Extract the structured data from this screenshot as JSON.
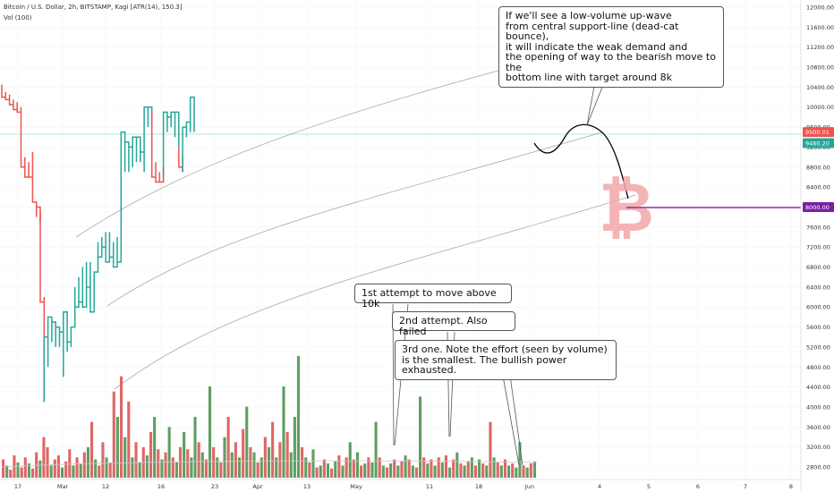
{
  "header": {
    "title": "Bitcoin / U.S. Dollar, 2h, BITSTAMP, Kagi [ATR(14), 150.3]",
    "volume": "Vol (100)"
  },
  "annotations": {
    "main": [
      "If we'll see a low-volume up-wave",
      "from central support-line (dead-cat bounce),",
      "it will indicate the weak demand and",
      "the opening of way to the bearish move to the",
      "bottom line with target around 8k"
    ],
    "first": "1st attempt to move above 10k",
    "second": "2nd attempt. Also failed",
    "third": [
      "3rd one. Note the effort (seen by volume)",
      "is the smallest. The bullish power exhausted."
    ]
  },
  "price_labels": {
    "current": "9500.01",
    "lower": "9460.20",
    "target": "8000.00"
  },
  "colors": {
    "up": "#26a69a",
    "down": "#ef5350",
    "vol_up": "#5e9f62",
    "vol_down": "#e06666",
    "target_line": "#9c27b0",
    "channel": "#aaaaaa",
    "watermark": "#f4a8a8"
  },
  "icons": {
    "watermark": "bitcoin-icon"
  },
  "chart_data": {
    "type": "line",
    "subtype": "kagi",
    "y_axis": {
      "ticks": [
        2800,
        3200,
        3600,
        4000,
        4400,
        4800,
        5200,
        5600,
        6000,
        6400,
        6800,
        7200,
        7600,
        8000,
        8400,
        8800,
        9200,
        9600,
        10000,
        10400,
        10800,
        11200,
        11600,
        12000
      ],
      "tick_labels": [
        "2800.00",
        "3200.00",
        "3600.00",
        "4000.00",
        "4400.00",
        "4800.00",
        "5200.00",
        "5600.00",
        "6000.00",
        "6400.00",
        "6800.00",
        "7200.00",
        "7600.00",
        "8000.00",
        "8400.00",
        "8800.00",
        "9200.00",
        "9600.00",
        "10000.00",
        "10400.00",
        "10800.00",
        "11200.00",
        "11600.00",
        "12000.00"
      ],
      "range": [
        2600,
        12200
      ],
      "side": "right"
    },
    "x_axis": {
      "tick_labels": [
        "17",
        "Mar",
        "12",
        "16",
        "23",
        "Apr",
        "13",
        "May",
        "11",
        "18",
        "Jun",
        "4",
        "5",
        "6",
        "7",
        "8"
      ]
    },
    "kagi": [
      {
        "dir": "down",
        "lines": [
          10450,
          10200,
          10300,
          10150,
          10250,
          10050,
          10150,
          9950,
          10100,
          9900,
          10000,
          9700
        ]
      },
      {
        "dir": "down",
        "lines": [
          9700,
          8800,
          9000,
          8600,
          8900,
          8600,
          9100,
          8100,
          7800,
          8000,
          7700,
          7900
        ]
      },
      {
        "dir": "down",
        "lines": [
          7900,
          6100,
          6200,
          4100
        ]
      },
      {
        "dir": "up",
        "lines": [
          4100,
          5400,
          4800,
          5800,
          5300,
          5700,
          5200,
          5600,
          5200,
          5500,
          4600,
          5900,
          5100,
          5300,
          5200,
          5600,
          6400,
          6000,
          6600,
          6100,
          6800,
          6000,
          6900,
          6400,
          6900,
          5900,
          6500,
          6700,
          7300,
          7000,
          7400,
          7200,
          7500,
          6900,
          7500,
          7000,
          7300,
          6800,
          7400,
          6900,
          8700,
          7900
        ]
      },
      {
        "dir": "up",
        "lines": [
          7900,
          9500,
          8700,
          9300,
          8700,
          9200,
          8800,
          9400,
          8900,
          9400,
          8900,
          9100,
          8700,
          10000,
          9600,
          10000,
          9700,
          9900
        ]
      },
      {
        "dir": "down",
        "lines": [
          9900,
          8600,
          8900,
          8500,
          8700,
          8500,
          8800,
          8600
        ]
      },
      {
        "dir": "up",
        "lines": [
          8600,
          9900,
          9500,
          9800,
          9600,
          9900,
          9400,
          9900,
          9200
        ]
      },
      {
        "dir": "down",
        "lines": [
          9200,
          8800,
          9000,
          8700
        ]
      },
      {
        "dir": "up",
        "lines": [
          8700,
          9600,
          9400,
          9700,
          9500,
          10200,
          9500
        ]
      }
    ],
    "volume": [
      {
        "v": 18,
        "c": "d"
      },
      {
        "v": 12,
        "c": "u"
      },
      {
        "v": 8,
        "c": "d"
      },
      {
        "v": 22,
        "c": "d"
      },
      {
        "v": 15,
        "c": "u"
      },
      {
        "v": 10,
        "c": "d"
      },
      {
        "v": 20,
        "c": "d"
      },
      {
        "v": 14,
        "c": "u"
      },
      {
        "v": 9,
        "c": "d"
      },
      {
        "v": 25,
        "c": "d"
      },
      {
        "v": 17,
        "c": "u"
      },
      {
        "v": 40,
        "c": "d"
      },
      {
        "v": 30,
        "c": "d"
      },
      {
        "v": 12,
        "c": "u"
      },
      {
        "v": 18,
        "c": "d"
      },
      {
        "v": 22,
        "c": "d"
      },
      {
        "v": 10,
        "c": "u"
      },
      {
        "v": 16,
        "c": "d"
      },
      {
        "v": 28,
        "c": "d"
      },
      {
        "v": 12,
        "c": "u"
      },
      {
        "v": 20,
        "c": "d"
      },
      {
        "v": 14,
        "c": "u"
      },
      {
        "v": 25,
        "c": "d"
      },
      {
        "v": 30,
        "c": "u"
      },
      {
        "v": 55,
        "c": "d"
      },
      {
        "v": 18,
        "c": "u"
      },
      {
        "v": 12,
        "c": "d"
      },
      {
        "v": 35,
        "c": "d"
      },
      {
        "v": 20,
        "c": "u"
      },
      {
        "v": 15,
        "c": "d"
      },
      {
        "v": 85,
        "c": "d"
      },
      {
        "v": 60,
        "c": "u"
      },
      {
        "v": 100,
        "c": "d"
      },
      {
        "v": 40,
        "c": "u"
      },
      {
        "v": 75,
        "c": "d"
      },
      {
        "v": 20,
        "c": "u"
      },
      {
        "v": 35,
        "c": "d"
      },
      {
        "v": 15,
        "c": "u"
      },
      {
        "v": 30,
        "c": "d"
      },
      {
        "v": 22,
        "c": "u"
      },
      {
        "v": 45,
        "c": "d"
      },
      {
        "v": 60,
        "c": "u"
      },
      {
        "v": 28,
        "c": "d"
      },
      {
        "v": 18,
        "c": "u"
      },
      {
        "v": 25,
        "c": "d"
      },
      {
        "v": 50,
        "c": "u"
      },
      {
        "v": 20,
        "c": "d"
      },
      {
        "v": 15,
        "c": "u"
      },
      {
        "v": 30,
        "c": "d"
      },
      {
        "v": 45,
        "c": "u"
      },
      {
        "v": 28,
        "c": "d"
      },
      {
        "v": 20,
        "c": "u"
      },
      {
        "v": 60,
        "c": "u"
      },
      {
        "v": 35,
        "c": "d"
      },
      {
        "v": 25,
        "c": "u"
      },
      {
        "v": 18,
        "c": "d"
      },
      {
        "v": 90,
        "c": "u"
      },
      {
        "v": 30,
        "c": "d"
      },
      {
        "v": 20,
        "c": "u"
      },
      {
        "v": 15,
        "c": "d"
      },
      {
        "v": 40,
        "c": "u"
      },
      {
        "v": 60,
        "c": "d"
      },
      {
        "v": 25,
        "c": "u"
      },
      {
        "v": 35,
        "c": "d"
      },
      {
        "v": 20,
        "c": "u"
      },
      {
        "v": 48,
        "c": "d"
      },
      {
        "v": 70,
        "c": "u"
      },
      {
        "v": 30,
        "c": "d"
      },
      {
        "v": 25,
        "c": "u"
      },
      {
        "v": 15,
        "c": "d"
      },
      {
        "v": 20,
        "c": "u"
      },
      {
        "v": 40,
        "c": "d"
      },
      {
        "v": 30,
        "c": "u"
      },
      {
        "v": 55,
        "c": "d"
      },
      {
        "v": 20,
        "c": "u"
      },
      {
        "v": 35,
        "c": "d"
      },
      {
        "v": 90,
        "c": "u"
      },
      {
        "v": 45,
        "c": "d"
      },
      {
        "v": 25,
        "c": "u"
      },
      {
        "v": 60,
        "c": "u"
      },
      {
        "v": 120,
        "c": "u"
      },
      {
        "v": 30,
        "c": "d"
      },
      {
        "v": 20,
        "c": "u"
      },
      {
        "v": 15,
        "c": "d"
      },
      {
        "v": 28,
        "c": "u"
      },
      {
        "v": 10,
        "c": "d"
      },
      {
        "v": 12,
        "c": "u"
      },
      {
        "v": 18,
        "c": "d"
      },
      {
        "v": 14,
        "c": "u"
      },
      {
        "v": 9,
        "c": "d"
      },
      {
        "v": 16,
        "c": "u"
      },
      {
        "v": 22,
        "c": "d"
      },
      {
        "v": 12,
        "c": "u"
      },
      {
        "v": 20,
        "c": "d"
      },
      {
        "v": 35,
        "c": "u"
      },
      {
        "v": 18,
        "c": "d"
      },
      {
        "v": 25,
        "c": "u"
      },
      {
        "v": 12,
        "c": "d"
      },
      {
        "v": 14,
        "c": "u"
      },
      {
        "v": 20,
        "c": "d"
      },
      {
        "v": 15,
        "c": "u"
      },
      {
        "v": 55,
        "c": "u"
      },
      {
        "v": 20,
        "c": "d"
      },
      {
        "v": 12,
        "c": "u"
      },
      {
        "v": 10,
        "c": "d"
      },
      {
        "v": 14,
        "c": "u"
      },
      {
        "v": 18,
        "c": "d"
      },
      {
        "v": 12,
        "c": "u"
      },
      {
        "v": 16,
        "c": "d"
      },
      {
        "v": 22,
        "c": "u"
      },
      {
        "v": 18,
        "c": "d"
      },
      {
        "v": 12,
        "c": "u"
      },
      {
        "v": 10,
        "c": "d"
      },
      {
        "v": 80,
        "c": "u"
      },
      {
        "v": 20,
        "c": "d"
      },
      {
        "v": 14,
        "c": "u"
      },
      {
        "v": 18,
        "c": "d"
      },
      {
        "v": 12,
        "c": "u"
      },
      {
        "v": 20,
        "c": "d"
      },
      {
        "v": 15,
        "c": "u"
      },
      {
        "v": 22,
        "c": "d"
      },
      {
        "v": 10,
        "c": "u"
      },
      {
        "v": 18,
        "c": "d"
      },
      {
        "v": 25,
        "c": "u"
      },
      {
        "v": 14,
        "c": "d"
      },
      {
        "v": 12,
        "c": "u"
      },
      {
        "v": 16,
        "c": "d"
      },
      {
        "v": 20,
        "c": "u"
      },
      {
        "v": 12,
        "c": "d"
      },
      {
        "v": 18,
        "c": "u"
      },
      {
        "v": 14,
        "c": "d"
      },
      {
        "v": 12,
        "c": "u"
      },
      {
        "v": 55,
        "c": "d"
      },
      {
        "v": 20,
        "c": "u"
      },
      {
        "v": 15,
        "c": "d"
      },
      {
        "v": 12,
        "c": "u"
      },
      {
        "v": 18,
        "c": "d"
      },
      {
        "v": 12,
        "c": "u"
      },
      {
        "v": 14,
        "c": "d"
      },
      {
        "v": 10,
        "c": "u"
      },
      {
        "v": 35,
        "c": "u"
      },
      {
        "v": 12,
        "c": "d"
      },
      {
        "v": 10,
        "c": "u"
      },
      {
        "v": 14,
        "c": "d"
      },
      {
        "v": 16,
        "c": "u"
      }
    ],
    "target_price": 8000,
    "current_price": 9500.01
  }
}
